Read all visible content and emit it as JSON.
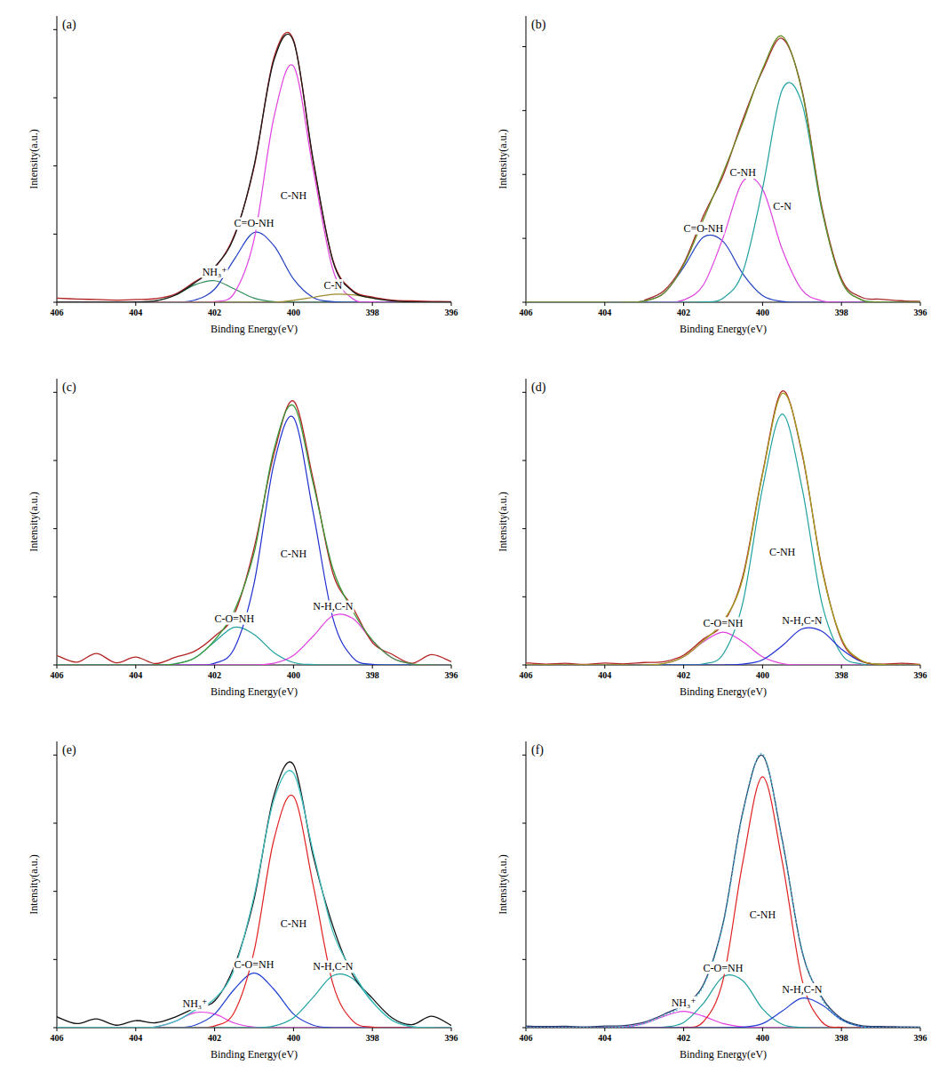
{
  "chart_data": [
    {
      "type": "line",
      "title": "(a)",
      "x_label": "Binding Energy(eV)",
      "y_label": "Intensity(a.u.)",
      "x": [
        406,
        405.5,
        405,
        404.5,
        404,
        403.5,
        403,
        402.5,
        402,
        401.5,
        401,
        400.5,
        400,
        399.5,
        399,
        398.5,
        398,
        397.5,
        397,
        396.5,
        396
      ],
      "xlim": [
        406,
        396
      ],
      "xticks": [
        406,
        404,
        402,
        400,
        398,
        396
      ],
      "ylim": [
        0,
        105
      ],
      "yticks": [
        0,
        25,
        50,
        75,
        100
      ],
      "tick_labels": "x",
      "series": [
        {
          "name": "NH₃⁺",
          "color": "#2e8b57",
          "values": [
            0,
            0,
            0,
            0,
            0,
            0.5,
            2.6,
            6.4,
            7.9,
            4.9,
            1.5,
            0.2,
            0,
            0,
            0,
            0,
            0,
            0,
            0,
            0,
            0
          ]
        },
        {
          "name": "C=O-NH",
          "color": "#1f3fbf",
          "values": [
            0,
            0,
            0,
            0,
            0,
            0,
            0,
            0.8,
            4.8,
            15.8,
            25.6,
            20.8,
            8.5,
            1.7,
            0.2,
            0,
            0,
            0,
            0,
            0,
            0
          ]
        },
        {
          "name": "C-NH",
          "color": "#e040e0",
          "values": [
            0,
            0,
            0,
            0,
            0,
            0,
            0,
            0,
            0.2,
            3.4,
            23.0,
            67.6,
            86.6,
            48.6,
            11.9,
            1.3,
            0.1,
            0,
            0,
            0,
            0
          ]
        },
        {
          "name": "C-N",
          "color": "#9a8a2a",
          "values": [
            0,
            0,
            0,
            0,
            0,
            0,
            0,
            0,
            0,
            0,
            0,
            0,
            0.7,
            1.8,
            2.9,
            2.7,
            1.5,
            0.5,
            0.1,
            0,
            0
          ]
        },
        {
          "color": "#b22222",
          "line_style": "solid",
          "values": [
            1.5,
            1.2,
            1.0,
            0.8,
            1.0,
            1.3,
            3.0,
            7.6,
            12.5,
            24.6,
            49.5,
            89.5,
            96.2,
            51.5,
            15.4,
            4.3,
            1.9,
            0.8,
            0.5,
            0.3,
            0.2
          ]
        },
        {
          "color": "#1a1a1a",
          "line_style": "solid",
          "values": [
            0,
            0,
            0,
            0,
            0.1,
            0.5,
            2.6,
            7.2,
            12.9,
            24.1,
            50.1,
            88.6,
            95.8,
            52.1,
            15.0,
            4.0,
            1.6,
            0.5,
            0.1,
            0,
            0
          ]
        }
      ]
    },
    {
      "type": "line",
      "title": "(b)",
      "x_label": "Binding Energy(eV)",
      "y_label": "Intensity(a.u.)",
      "x": [
        406,
        405.5,
        405,
        404.5,
        404,
        403.5,
        403,
        402.5,
        402,
        401.5,
        401,
        400.5,
        400,
        399.5,
        399,
        398.5,
        398,
        397.5,
        397,
        396.5,
        396
      ],
      "xlim": [
        406,
        396
      ],
      "xticks": [
        406,
        404,
        402,
        400,
        398,
        396
      ],
      "ylim": [
        0,
        112
      ],
      "yticks": [
        0,
        25,
        50,
        75,
        100
      ],
      "tick_labels": "x",
      "series": [
        {
          "name": "C=O-NH",
          "color": "#2040c0",
          "values": [
            0,
            0,
            0,
            0,
            0,
            0,
            0.5,
            3.6,
            13.7,
            25.5,
            23.8,
            11.1,
            2.6,
            0.3,
            0,
            0,
            0,
            0,
            0,
            0,
            0
          ]
        },
        {
          "name": "C-NH",
          "color": "#e040e0",
          "values": [
            0,
            0,
            0,
            0,
            0,
            0,
            0,
            0,
            0.9,
            6.8,
            25.3,
            47.3,
            44.2,
            20.6,
            4.8,
            0.6,
            0,
            0,
            0,
            0,
            0
          ]
        },
        {
          "name": "C-N",
          "color": "#20a0a0",
          "values": [
            0,
            0,
            0,
            0,
            0,
            0,
            0,
            0,
            0,
            0.1,
            1.6,
            11.9,
            44.5,
            83.2,
            77.7,
            36.2,
            8.4,
            1.0,
            0.1,
            0,
            0
          ]
        },
        {
          "color": "#a52a2a",
          "line_style": "solid",
          "values": [
            null,
            null,
            null,
            null,
            null,
            null,
            0.8,
            4.5,
            15.2,
            33.8,
            49.6,
            71.5,
            90.6,
            103.2,
            83.1,
            37.5,
            9.2,
            2.0,
            1.2,
            0.6,
            0.3
          ]
        },
        {
          "color": "#6b8e23",
          "line_style": "solid",
          "values": [
            0,
            0,
            0,
            0,
            0,
            0,
            0.5,
            3.6,
            14.6,
            32.4,
            50.7,
            70.3,
            91.3,
            104.1,
            82.5,
            36.8,
            8.4,
            1.0,
            0.1,
            0,
            0
          ]
        }
      ]
    },
    {
      "type": "line",
      "title": "(c)",
      "x_label": "Binding Energy(eV)",
      "y_label": "Intensity(a.u.)",
      "x": [
        406,
        405.5,
        405,
        404.5,
        404,
        403.5,
        403,
        402.5,
        402,
        401.5,
        401,
        400.5,
        400,
        399.5,
        399,
        398.5,
        398,
        397.5,
        397,
        396.5,
        396
      ],
      "xlim": [
        406,
        396
      ],
      "xticks": [
        406,
        404,
        402,
        400,
        398,
        396
      ],
      "ylim": [
        0,
        105
      ],
      "yticks": [
        0,
        25,
        50,
        75,
        100
      ],
      "tick_labels": "x",
      "series": [
        {
          "name": "C-O=NH",
          "color": "#20a0a0",
          "values": [
            0,
            0,
            0,
            0,
            0,
            0,
            0.4,
            2.6,
            8.5,
            13.8,
            11.2,
            4.6,
            0.9,
            0.1,
            0,
            0,
            0,
            0,
            0,
            0,
            0
          ]
        },
        {
          "name": "C-NH",
          "color": "#1f2fd0",
          "values": [
            0,
            0,
            0,
            0,
            0,
            0,
            0,
            0,
            0.6,
            6.1,
            29.9,
            73.6,
            90.7,
            55.8,
            17.1,
            2.7,
            0.2,
            0,
            0,
            0,
            0
          ]
        },
        {
          "name": "N-H,C-N",
          "color": "#e040e0",
          "values": [
            0,
            0,
            0,
            0,
            0,
            0,
            0,
            0,
            0,
            0,
            0,
            0.6,
            3.5,
            10.6,
            18.1,
            17.1,
            8.9,
            2.6,
            0.4,
            0,
            0
          ]
        },
        {
          "color": "#b22222",
          "line_style": "solid",
          "values": [
            3.5,
            1.0,
            4.2,
            0.8,
            2.9,
            0.5,
            2.8,
            5.1,
            10.5,
            18.6,
            42.8,
            77.2,
            96.8,
            67.9,
            33.6,
            21.2,
            8.2,
            3.9,
            0.6,
            3.8,
            1.2
          ]
        },
        {
          "color": "#3a9a3a",
          "line_style": "solid",
          "values": [
            0,
            0,
            0,
            0,
            0,
            0,
            0.4,
            2.6,
            9.1,
            19.9,
            41.1,
            78.8,
            95.1,
            66.5,
            35.2,
            19.8,
            9.1,
            2.6,
            0.4,
            0,
            0
          ]
        }
      ]
    },
    {
      "type": "line",
      "title": "(d)",
      "x_label": "Binding Energy(eV)",
      "y_label": "Intensity(a.u.)",
      "x": [
        406,
        405.5,
        405,
        404.5,
        404,
        403.5,
        403,
        402.5,
        402,
        401.5,
        401,
        400.5,
        400,
        399.5,
        399,
        398.5,
        398,
        397.5,
        397,
        396.5,
        396
      ],
      "xlim": [
        406,
        396
      ],
      "xticks": [
        406,
        404,
        402,
        400,
        398,
        396
      ],
      "ylim": [
        0,
        105
      ],
      "yticks": [
        0,
        25,
        50,
        75,
        100
      ],
      "tick_labels": "x",
      "series": [
        {
          "name": "C-O=NH",
          "color": "#e040e0",
          "values": [
            0,
            0,
            0,
            0,
            0,
            0,
            0,
            0.5,
            3.0,
            8.5,
            12.0,
            8.5,
            3.0,
            0.5,
            0,
            0,
            0,
            0,
            0,
            0,
            0
          ]
        },
        {
          "name": "C-NH",
          "color": "#20a0a0",
          "values": [
            0,
            0,
            0,
            0,
            0,
            0,
            0,
            0,
            0,
            0.4,
            4.0,
            22.9,
            65.0,
            92.0,
            65.0,
            22.9,
            4.0,
            0.4,
            0,
            0,
            0
          ]
        },
        {
          "name": "N-H,C-N",
          "color": "#1f2fd0",
          "values": [
            0,
            0,
            0,
            0,
            0,
            0,
            0,
            0,
            0,
            0,
            0,
            0.3,
            1.9,
            7.1,
            13.2,
            12.4,
            5.8,
            1.3,
            0.2,
            0,
            0
          ]
        },
        {
          "color": "#b22222",
          "line_style": "solid",
          "values": [
            0.8,
            0.3,
            0.6,
            0.2,
            0.7,
            0.4,
            0.9,
            1.2,
            3.6,
            9.5,
            15.2,
            32.6,
            70.4,
            100.5,
            77.6,
            35.9,
            9.2,
            1.5,
            0.3,
            0.6,
            0.2
          ]
        },
        {
          "color": "#a0a020",
          "line_style": "solid",
          "values": [
            0,
            0,
            0,
            0,
            0,
            0,
            0,
            0.5,
            3.0,
            8.9,
            16.0,
            31.7,
            69.9,
            99.6,
            78.2,
            35.3,
            9.8,
            1.7,
            0.2,
            0,
            0
          ]
        }
      ]
    },
    {
      "type": "line",
      "title": "(e)",
      "x_label": "Binding Energy(eV)",
      "y_label": "Intensity(a.u.)",
      "x": [
        406,
        405.5,
        405,
        404.5,
        404,
        403.5,
        403,
        402.5,
        402,
        401.5,
        401,
        400.5,
        400,
        399.5,
        399,
        398.5,
        398,
        397.5,
        397,
        396.5,
        396
      ],
      "xlim": [
        406,
        396
      ],
      "xticks": [
        406,
        404,
        402,
        400,
        398,
        396
      ],
      "ylim": [
        0,
        105
      ],
      "yticks": [
        0,
        25,
        50,
        75,
        100
      ],
      "tick_labels": "x",
      "series": [
        {
          "name": "NH₃⁺",
          "color": "#e040e0",
          "values": [
            0,
            0,
            0,
            0,
            0,
            0.3,
            2.3,
            5.5,
            5.0,
            1.7,
            0.2,
            0,
            0,
            0,
            0,
            0,
            0,
            0,
            0,
            0,
            0
          ]
        },
        {
          "name": "C-O=NH",
          "color": "#1f3fd0",
          "values": [
            0,
            0,
            0,
            0,
            0,
            0,
            0,
            0.9,
            5.0,
            14.1,
            20.0,
            14.1,
            5.0,
            0.9,
            0,
            0,
            0,
            0,
            0,
            0,
            0
          ]
        },
        {
          "name": "C-NH",
          "color": "#e02020",
          "values": [
            0,
            0,
            0,
            0,
            0,
            0,
            0,
            0,
            0.6,
            5.7,
            28.0,
            68.8,
            84.8,
            52.2,
            16.0,
            2.5,
            0.2,
            0,
            0,
            0,
            0
          ]
        },
        {
          "name": "N-H,C-N",
          "color": "#20a0a0",
          "values": [
            0,
            0,
            0,
            0,
            0,
            0,
            0,
            0,
            0,
            0,
            0,
            0.6,
            3.6,
            11.2,
            19.1,
            18.0,
            9.4,
            2.7,
            0.4,
            0,
            0
          ]
        },
        {
          "color": "#111111",
          "line_style": "solid",
          "values": [
            4.0,
            1.5,
            3.2,
            0.9,
            2.6,
            1.8,
            3.9,
            7.2,
            9.8,
            22.6,
            47.1,
            85.0,
            96.5,
            63.0,
            37.2,
            19.4,
            10.8,
            3.6,
            1.1,
            4.2,
            0.8
          ]
        },
        {
          "color": "#40c0c0",
          "line_style": "solid",
          "values": [
            0,
            0,
            0,
            0,
            0,
            0.3,
            2.3,
            6.4,
            10.6,
            21.5,
            48.2,
            83.5,
            93.4,
            64.3,
            35.1,
            20.5,
            9.6,
            2.7,
            0.4,
            0,
            0
          ]
        }
      ]
    },
    {
      "type": "line",
      "title": "(f)",
      "x_label": "Binding Energy(eV)",
      "y_label": "Intensity(a.u.)",
      "x": [
        406,
        405.5,
        405,
        404.5,
        404,
        403.5,
        403,
        402.5,
        402,
        401.5,
        401,
        400.5,
        400,
        399.5,
        399,
        398.5,
        398,
        397.5,
        397,
        396.5,
        396
      ],
      "xlim": [
        406,
        396
      ],
      "xticks": [
        406,
        404,
        402,
        400,
        398,
        396
      ],
      "ylim": [
        0,
        105
      ],
      "yticks": [
        0,
        25,
        50,
        75,
        100
      ],
      "tick_labels": "x",
      "series": [
        {
          "name": "NH₃⁺",
          "color": "#e040e0",
          "values": [
            0,
            0,
            0,
            0,
            0,
            0.3,
            1.5,
            4.2,
            6.0,
            4.2,
            1.5,
            0.3,
            0,
            0,
            0,
            0,
            0,
            0,
            0,
            0,
            0
          ]
        },
        {
          "name": "C-O=NH",
          "color": "#20a0a0",
          "values": [
            0,
            0,
            0,
            0,
            0,
            0,
            0,
            0.2,
            1.9,
            8.9,
            18.7,
            17.2,
            6.9,
            1.2,
            0.1,
            0,
            0,
            0,
            0,
            0,
            0
          ]
        },
        {
          "name": "C-NH",
          "color": "#e02020",
          "values": [
            0,
            0,
            0,
            0,
            0,
            0,
            0,
            0,
            0.1,
            2.2,
            17.6,
            60.8,
            92.0,
            60.8,
            17.6,
            2.2,
            0.1,
            0,
            0,
            0,
            0
          ]
        },
        {
          "name": "N-H,C-N",
          "color": "#1f3fd0",
          "values": [
            0,
            0,
            0,
            0,
            0,
            0,
            0,
            0,
            0,
            0,
            0,
            0.2,
            1.5,
            6.1,
            10.8,
            8.4,
            2.9,
            0.4,
            0,
            0,
            0
          ]
        },
        {
          "color": "#2a3a6a",
          "line_style": "solid",
          "values": [
            0.6,
            0.4,
            0.5,
            0.3,
            0.6,
            0.8,
            2.0,
            4.9,
            8.6,
            15.8,
            38.4,
            79.2,
            99.8,
            68.8,
            28.0,
            11.2,
            3.3,
            0.8,
            0.4,
            0.3,
            0.2
          ]
        },
        {
          "color": "#40b8c8",
          "line_style": "dotted",
          "values": [
            0,
            0,
            0,
            0,
            0,
            0.3,
            1.5,
            4.4,
            8.0,
            15.3,
            37.8,
            78.5,
            100.4,
            68.1,
            28.5,
            10.6,
            3.0,
            0.4,
            0,
            0,
            0
          ]
        }
      ]
    }
  ]
}
